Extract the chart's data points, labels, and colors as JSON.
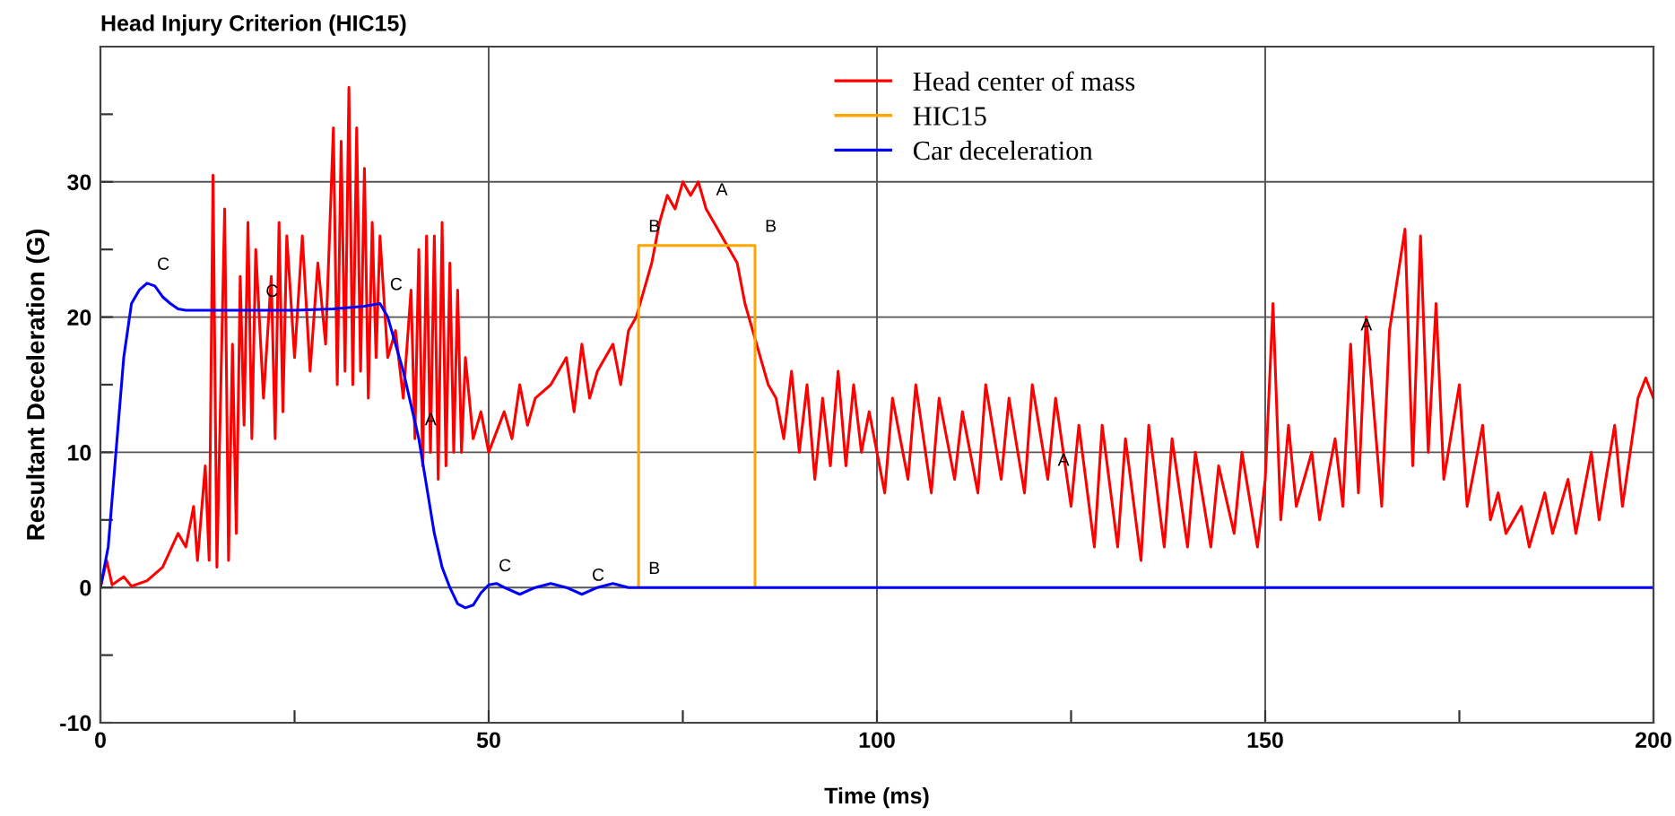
{
  "chart_data": {
    "type": "line",
    "title": "Head Injury Criterion (HIC15)",
    "xlabel": "Time (ms)",
    "ylabel": "Resultant Deceleration (G)",
    "xlim": [
      0,
      200
    ],
    "ylim": [
      -10,
      40
    ],
    "xticks": [
      0,
      {
        "value": 25,
        "label": null
      },
      50,
      {
        "value": 75,
        "label": null
      },
      100,
      {
        "value": 125,
        "label": null
      },
      150,
      {
        "value": 175,
        "label": null
      },
      200
    ],
    "yticks": [
      -10,
      {
        "value": -5,
        "label": null
      },
      0,
      {
        "value": 5,
        "label": null
      },
      10,
      {
        "value": 15,
        "label": null
      },
      20,
      {
        "value": 25,
        "label": null
      },
      30,
      {
        "value": 35,
        "label": null
      }
    ],
    "grid": true,
    "legend": "top",
    "line_style": "solid",
    "series": [
      {
        "name": "Head center of mass",
        "color": "#ff0000",
        "x": [
          0,
          0.8,
          1.5,
          3,
          4,
          6,
          8,
          10,
          11,
          12,
          12.5,
          13.5,
          14,
          14.5,
          15,
          16,
          16.5,
          17,
          17.5,
          18,
          18.5,
          19,
          19.5,
          20,
          21,
          22,
          22.5,
          23,
          23.5,
          24,
          25,
          26,
          27,
          28,
          29,
          30,
          30.5,
          31,
          31.5,
          32,
          32.5,
          33,
          33.5,
          34,
          34.5,
          35,
          35.5,
          36,
          37,
          38,
          39,
          40,
          40.5,
          41,
          41.5,
          42,
          42.5,
          43,
          43.5,
          44,
          44.5,
          45,
          45.5,
          46,
          46.5,
          47,
          48,
          49,
          50,
          52,
          53,
          54,
          55,
          56,
          58,
          60,
          61,
          62,
          63,
          64,
          66,
          67,
          68,
          69,
          70,
          71,
          72,
          73,
          74,
          75,
          76,
          77,
          78,
          79,
          80,
          81,
          82,
          83,
          84,
          85,
          86,
          87,
          88,
          89,
          90,
          91,
          92,
          93,
          94,
          95,
          96,
          97,
          98,
          99,
          101,
          102,
          104,
          105,
          107,
          108,
          110,
          111,
          113,
          114,
          116,
          117,
          119,
          120,
          122,
          123,
          125,
          126,
          128,
          129,
          131,
          132,
          134,
          135,
          137,
          138,
          140,
          141,
          143,
          144,
          146,
          147,
          149,
          150,
          151,
          152,
          153,
          154,
          156,
          157,
          159,
          160,
          161,
          162,
          163,
          165,
          166,
          168,
          169,
          170,
          171,
          172,
          173,
          175,
          176,
          178,
          179,
          180,
          181,
          183,
          184,
          186,
          187,
          189,
          190,
          192,
          193,
          195,
          196,
          198,
          199,
          200
        ],
        "values": [
          0,
          2,
          0.2,
          0.8,
          0.1,
          0.5,
          1.5,
          4,
          3,
          6,
          2,
          9,
          2,
          30.5,
          1.5,
          28,
          2,
          18,
          4,
          23,
          12,
          27,
          11,
          25,
          14,
          23,
          11,
          27,
          13,
          26,
          17,
          26,
          16,
          24,
          18,
          34,
          15,
          33,
          16,
          37,
          15,
          34,
          16,
          31,
          14,
          27,
          17,
          26,
          17,
          19,
          14,
          22,
          11,
          25,
          9,
          26,
          10,
          26,
          8,
          27,
          9,
          24,
          10,
          22,
          10,
          17,
          11,
          13,
          10,
          13,
          11,
          15,
          12,
          14,
          15,
          17,
          13,
          18,
          14,
          16,
          18,
          15,
          19,
          20,
          22,
          24,
          27,
          29,
          28,
          30,
          29,
          30,
          28,
          27,
          26,
          25,
          24,
          21,
          19,
          17,
          15,
          14,
          11,
          16,
          10,
          15,
          8,
          14,
          9,
          16,
          9,
          15,
          10,
          13,
          7,
          14,
          8,
          15,
          7,
          14,
          8,
          13,
          7,
          15,
          8,
          14,
          7,
          15,
          8,
          14,
          6,
          12,
          3,
          12,
          3,
          11,
          2,
          12,
          3,
          11,
          3,
          10,
          3,
          9,
          4,
          10,
          3,
          8,
          21,
          5,
          12,
          6,
          10,
          5,
          11,
          6,
          18,
          7,
          20,
          6,
          19,
          26.5,
          9,
          26,
          10,
          21,
          8,
          15,
          6,
          12,
          5,
          7,
          4,
          6,
          3,
          7,
          4,
          8,
          4,
          10,
          5,
          12,
          6,
          14,
          15.5,
          14
        ]
      },
      {
        "name": "HIC15",
        "color": "#ffa500",
        "x": [
          69.3,
          69.3,
          84.3,
          84.3
        ],
        "values": [
          0,
          25.3,
          25.3,
          0
        ]
      },
      {
        "name": "Car deceleration",
        "color": "#0000ff",
        "x": [
          0,
          1,
          2,
          3,
          4,
          5,
          6,
          7,
          8,
          9,
          10,
          11,
          15,
          20,
          25,
          30,
          34,
          36,
          37,
          38,
          39,
          40,
          41,
          42,
          43,
          44,
          45,
          46,
          47,
          48,
          49,
          50,
          51,
          52,
          54,
          56,
          58,
          60,
          62,
          64,
          66,
          68,
          70,
          200
        ],
        "values": [
          0,
          3,
          10,
          17,
          21,
          22,
          22.5,
          22.3,
          21.5,
          21,
          20.6,
          20.5,
          20.5,
          20.5,
          20.5,
          20.6,
          20.8,
          21,
          20,
          18,
          16,
          13.5,
          11,
          7.5,
          4,
          1.5,
          0,
          -1.2,
          -1.5,
          -1.3,
          -0.4,
          0.2,
          0.3,
          0,
          -0.5,
          0,
          0.3,
          0,
          -0.5,
          0,
          0.3,
          0,
          0,
          0
        ]
      }
    ],
    "annotations": [
      {
        "text": "A",
        "x": 40.5,
        "y": 11
      },
      {
        "text": "A",
        "x": 78,
        "y": 28
      },
      {
        "text": "A",
        "x": 122,
        "y": 8
      },
      {
        "text": "A",
        "x": 161,
        "y": 18
      },
      {
        "text": "B",
        "x": 69.3,
        "y": 25.3
      },
      {
        "text": "B",
        "x": 84.3,
        "y": 25.3
      },
      {
        "text": "B",
        "x": 69.3,
        "y": 0
      },
      {
        "text": "C",
        "x": 6,
        "y": 22.5
      },
      {
        "text": "C",
        "x": 20,
        "y": 20.5
      },
      {
        "text": "C",
        "x": 36,
        "y": 21
      },
      {
        "text": "C",
        "x": 50,
        "y": 0.2
      },
      {
        "text": "C",
        "x": 62,
        "y": -0.5
      }
    ]
  }
}
